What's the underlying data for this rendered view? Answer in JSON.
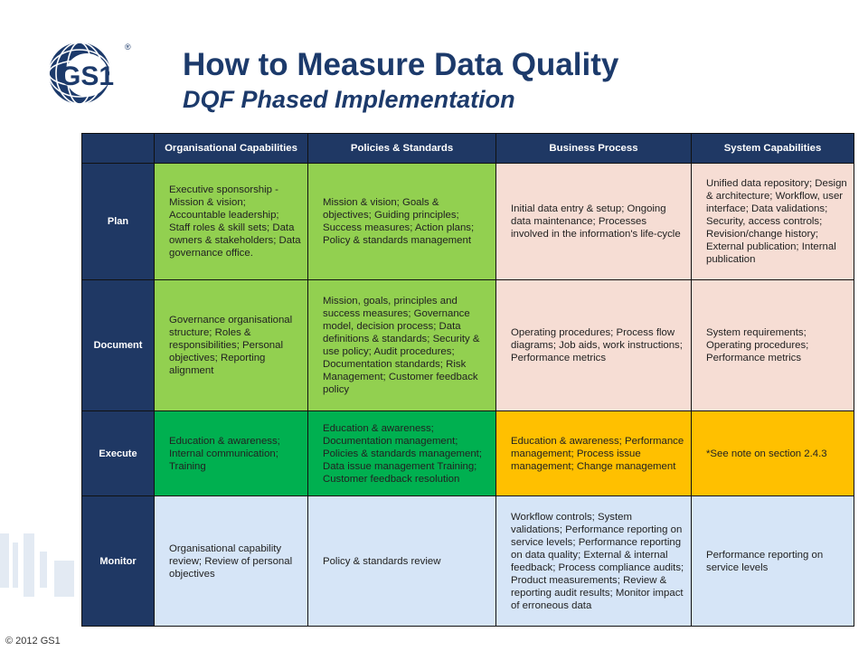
{
  "header": {
    "title": "How to Measure Data Quality",
    "subtitle": "DQF Phased Implementation"
  },
  "logo": {
    "text": "GS1",
    "registered": "®"
  },
  "footer": {
    "copyright": "© 2012 GS1"
  },
  "colors": {
    "header_navy": "#1f3864",
    "title_blue": "#1c3a6b",
    "green": "#92d050",
    "dark_green": "#00b050",
    "pink": "#f6ddd4",
    "orange": "#ffc000",
    "light_blue": "#d6e5f7"
  },
  "table": {
    "columns": [
      "",
      "Organisational Capabilities",
      "Policies & Standards",
      "Business Process",
      "System Capabilities"
    ],
    "rows": [
      {
        "label": "Plan",
        "cells": [
          "Executive sponsorship - Mission & vision; Accountable leadership; Staff roles & skill sets; Data owners & stakeholders; Data governance office.",
          "Mission & vision; Goals & objectives; Guiding principles; Success measures; Action plans; Policy & standards management",
          "Initial data entry & setup; Ongoing data maintenance; Processes involved in the information's life-cycle",
          "Unified data repository; Design & architecture; Workflow, user interface; Data validations; Security, access controls; Revision/change history; External publication; Internal publication"
        ]
      },
      {
        "label": "Document",
        "cells": [
          "Governance organisational structure; Roles & responsibilities; Personal objectives; Reporting alignment",
          "Mission, goals, principles and success measures; Governance model, decision process; Data definitions & standards; Security & use policy; Audit procedures; Documentation standards; Risk Management; Customer feedback policy",
          "Operating procedures; Process flow diagrams; Job aids, work instructions; Performance metrics",
          "System requirements; Operating procedures; Performance metrics"
        ]
      },
      {
        "label": "Execute",
        "cells": [
          "Education & awareness; Internal communication; Training",
          "Education & awareness; Documentation management; Policies & standards management; Data issue management Training; Customer feedback resolution",
          "Education & awareness; Performance management; Process issue management; Change management",
          "*See note on section 2.4.3"
        ]
      },
      {
        "label": "Monitor",
        "cells": [
          "Organisational capability review; Review of personal objectives",
          "Policy & standards review",
          "Workflow controls; System validations; Performance reporting on service levels; Performance reporting on data quality; External & internal feedback; Process compliance audits; Product measurements; Review & reporting audit results; Monitor impact of erroneous data",
          "Performance reporting on service levels"
        ]
      }
    ]
  }
}
